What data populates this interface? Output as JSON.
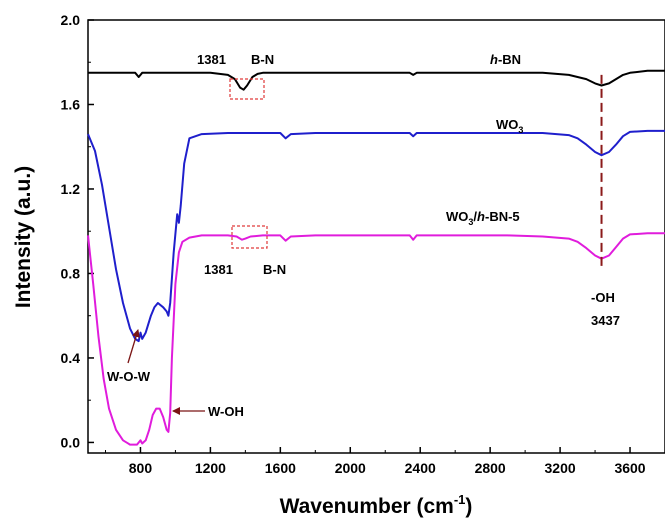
{
  "chart_data": {
    "type": "line",
    "xlabel": "Wavenumber (cm",
    "xlabel_sup": "-1",
    "xlabel_end": ")",
    "ylabel": "Intensity (a.u.)",
    "xlim": [
      500,
      3800
    ],
    "ylim": [
      -0.05,
      2.0
    ],
    "xticks": [
      800,
      1200,
      1600,
      2000,
      2400,
      2800,
      3200,
      3600
    ],
    "xtick_labels": [
      "800",
      "1200",
      "1600",
      "2000",
      "2400",
      "2800",
      "3200",
      "3600"
    ],
    "yticks": [
      0.0,
      0.4,
      0.8,
      1.2,
      1.6,
      2.0
    ],
    "ytick_labels": [
      "0.0",
      "0.4",
      "0.8",
      "1.2",
      "1.6",
      "2.0"
    ],
    "grid": false,
    "series": [
      {
        "name": "h-BN",
        "color": "#000000",
        "x": [
          500,
          700,
          770,
          790,
          810,
          850,
          1000,
          1200,
          1300,
          1340,
          1370,
          1390,
          1410,
          1440,
          1470,
          1500,
          1600,
          1800,
          2000,
          2200,
          2340,
          2360,
          2380,
          2600,
          2900,
          3100,
          3250,
          3350,
          3400,
          3437,
          3480,
          3520,
          3560,
          3600,
          3700,
          3800
        ],
        "y": [
          1.75,
          1.75,
          1.75,
          1.73,
          1.75,
          1.75,
          1.75,
          1.75,
          1.74,
          1.72,
          1.68,
          1.67,
          1.69,
          1.73,
          1.745,
          1.75,
          1.75,
          1.75,
          1.75,
          1.75,
          1.75,
          1.74,
          1.75,
          1.75,
          1.75,
          1.75,
          1.74,
          1.72,
          1.7,
          1.69,
          1.7,
          1.72,
          1.74,
          1.75,
          1.76,
          1.76
        ]
      },
      {
        "name": "WO3",
        "color": "#1f1fcc",
        "x": [
          500,
          540,
          580,
          620,
          660,
          700,
          740,
          770,
          790,
          800,
          810,
          830,
          860,
          880,
          900,
          930,
          950,
          960,
          970,
          990,
          1010,
          1020,
          1030,
          1050,
          1080,
          1150,
          1300,
          1500,
          1600,
          1630,
          1660,
          1800,
          2000,
          2340,
          2360,
          2380,
          2600,
          2900,
          3100,
          3250,
          3300,
          3350,
          3400,
          3437,
          3480,
          3520,
          3560,
          3600,
          3700,
          3800
        ],
        "y": [
          1.46,
          1.38,
          1.22,
          1.02,
          0.82,
          0.66,
          0.54,
          0.49,
          0.48,
          0.52,
          0.49,
          0.52,
          0.6,
          0.64,
          0.66,
          0.64,
          0.62,
          0.6,
          0.66,
          0.9,
          1.08,
          1.04,
          1.12,
          1.32,
          1.44,
          1.46,
          1.465,
          1.465,
          1.465,
          1.44,
          1.46,
          1.465,
          1.465,
          1.465,
          1.45,
          1.465,
          1.465,
          1.465,
          1.465,
          1.455,
          1.44,
          1.41,
          1.375,
          1.36,
          1.375,
          1.41,
          1.45,
          1.47,
          1.475,
          1.475
        ]
      },
      {
        "name": "WO3/h-BN-5",
        "color": "#e01cdc",
        "x": [
          500,
          530,
          560,
          590,
          620,
          660,
          700,
          740,
          780,
          800,
          810,
          830,
          850,
          870,
          890,
          910,
          930,
          950,
          960,
          970,
          980,
          1000,
          1020,
          1040,
          1080,
          1150,
          1300,
          1350,
          1380,
          1400,
          1430,
          1500,
          1600,
          1630,
          1660,
          1800,
          2000,
          2340,
          2360,
          2380,
          2600,
          2900,
          3100,
          3250,
          3300,
          3350,
          3400,
          3437,
          3480,
          3520,
          3560,
          3600,
          3700,
          3800
        ],
        "y": [
          0.98,
          0.75,
          0.5,
          0.3,
          0.16,
          0.06,
          0.01,
          -0.01,
          -0.01,
          0.01,
          -0.005,
          0.01,
          0.06,
          0.13,
          0.16,
          0.16,
          0.12,
          0.06,
          0.05,
          0.14,
          0.4,
          0.75,
          0.9,
          0.95,
          0.97,
          0.98,
          0.98,
          0.975,
          0.96,
          0.965,
          0.975,
          0.98,
          0.98,
          0.955,
          0.975,
          0.98,
          0.98,
          0.98,
          0.96,
          0.98,
          0.98,
          0.98,
          0.975,
          0.965,
          0.95,
          0.92,
          0.885,
          0.87,
          0.885,
          0.925,
          0.965,
          0.985,
          0.99,
          0.99
        ]
      }
    ],
    "annotations": {
      "hbn_label_prefix": "h",
      "hbn_label_suffix": "-BN",
      "wo3_label_main": "WO",
      "wo3_label_sub": "3",
      "composite_label_main": "WO",
      "composite_label_sub": "3",
      "composite_label_slash": "/",
      "composite_label_h": "h",
      "composite_label_rest": "-BN-5",
      "top_peak_number": "1381",
      "top_peak_bond": "B-N",
      "bottom_peak_number": "1381",
      "bottom_peak_bond": "B-N",
      "oh_label": "-OH",
      "oh_value": "3437",
      "wow_label": "W-O-W",
      "woh_label": "W-OH"
    },
    "colors": {
      "dashed_line": "#8b1a1a",
      "box": "#e03a3a",
      "arrow": "#7a1414"
    }
  }
}
